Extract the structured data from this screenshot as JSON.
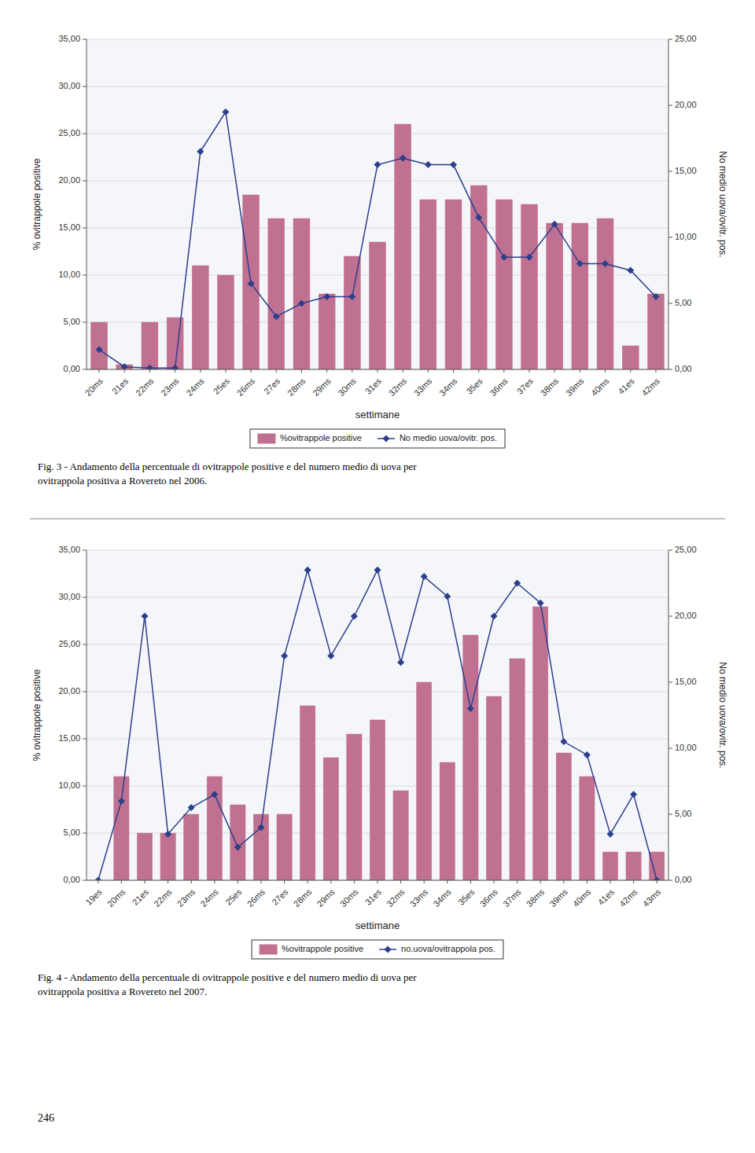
{
  "chart_data": [
    {
      "type": "bar",
      "x_label": "settimane",
      "y_label": "% ovitrappole positive",
      "y2_label": "No medio uova/ovitr. pos.",
      "categories": [
        "20ms",
        "21es",
        "22ms",
        "23ms",
        "24ms",
        "25es",
        "26ms",
        "27es",
        "28ms",
        "29ms",
        "30ms",
        "31es",
        "32ms",
        "33ms",
        "34ms",
        "35es",
        "36ms",
        "37es",
        "38ms",
        "39ms",
        "40ms",
        "41es",
        "42ms"
      ],
      "series": [
        {
          "name": "%ovitrappole positive",
          "type": "bar",
          "color": "#c07090",
          "values": [
            5.0,
            0.5,
            5.0,
            5.5,
            11.0,
            10.0,
            18.5,
            16.0,
            16.0,
            8.0,
            12.0,
            13.5,
            26.0,
            18.0,
            18.0,
            19.5,
            18.0,
            17.5,
            15.5,
            15.5,
            16.0,
            2.5,
            8.0
          ]
        },
        {
          "name": "No medio uova/ovitr. pos.",
          "type": "line",
          "axis": "y2",
          "color": "#2b3f8c",
          "marker": "diamond",
          "line_style": "solid",
          "values": [
            1.5,
            0.2,
            0.1,
            0.1,
            16.5,
            19.5,
            6.5,
            4.0,
            5.0,
            5.5,
            5.5,
            15.5,
            16.0,
            15.5,
            15.5,
            11.5,
            8.5,
            8.5,
            11.0,
            8.0,
            8.0,
            7.5,
            5.5
          ]
        }
      ],
      "ylim": [
        0,
        35
      ],
      "yticks": [
        {
          "value": 0,
          "label": "0,00"
        },
        {
          "value": 5,
          "label": "5,00"
        },
        {
          "value": 10,
          "label": "10,00"
        },
        {
          "value": 15,
          "label": "15,00"
        },
        {
          "value": 20,
          "label": "20,00"
        },
        {
          "value": 25,
          "label": "25,00"
        },
        {
          "value": 30,
          "label": "30,00"
        },
        {
          "value": 35,
          "label": "35,00"
        }
      ],
      "y2lim": [
        0,
        25
      ],
      "y2ticks": [
        {
          "value": 0,
          "label": "0,00"
        },
        {
          "value": 5,
          "label": "5,00"
        },
        {
          "value": 10,
          "label": "10,00"
        },
        {
          "value": 15,
          "label": "15,00"
        },
        {
          "value": 20,
          "label": "20,00"
        },
        {
          "value": 25,
          "label": "25,00"
        }
      ],
      "grid": true,
      "legend": "bottom",
      "annotations": [
        "Fig. 3 - Andamento della percentuale di ovitrappole positive e del numero medio di uova per",
        "ovitrappola positiva a Rovereto nel 2006."
      ]
    },
    {
      "type": "bar",
      "x_label": "settimane",
      "y_label": "% ovitrappole positive",
      "y2_label": "No medio uova/ovitr. pos.",
      "categories": [
        "19es",
        "20ms",
        "21es",
        "22ms",
        "23ms",
        "24ms",
        "25es",
        "26ms",
        "27es",
        "28ms",
        "29ms",
        "30ms",
        "31es",
        "32ms",
        "33ms",
        "34ms",
        "35es",
        "36ms",
        "37ms",
        "38ms",
        "39ms",
        "40ms",
        "41es",
        "42ms",
        "43ms"
      ],
      "series": [
        {
          "name": "%ovitrappole positive",
          "type": "bar",
          "color": "#c07090",
          "values": [
            0.0,
            11.0,
            5.0,
            5.0,
            7.0,
            11.0,
            8.0,
            7.0,
            7.0,
            18.5,
            13.0,
            15.5,
            17.0,
            9.5,
            21.0,
            12.5,
            26.0,
            19.5,
            23.5,
            29.0,
            13.5,
            11.0,
            3.0,
            3.0,
            3.0
          ]
        },
        {
          "name": "no.uova/ovitrappola pos.",
          "type": "line",
          "axis": "y2",
          "color": "#2b3f8c",
          "marker": "diamond",
          "line_style": "solid",
          "values": [
            0.0,
            6.0,
            20.0,
            3.5,
            5.5,
            6.5,
            2.5,
            4.0,
            17.0,
            23.5,
            17.0,
            20.0,
            23.5,
            16.5,
            23.0,
            21.5,
            13.0,
            20.0,
            22.5,
            21.0,
            10.5,
            9.5,
            3.5,
            6.5,
            0.0
          ]
        }
      ],
      "ylim": [
        0,
        35
      ],
      "yticks": [
        {
          "value": 0,
          "label": "0,00"
        },
        {
          "value": 5,
          "label": "5,00"
        },
        {
          "value": 10,
          "label": "10,00"
        },
        {
          "value": 15,
          "label": "15,00"
        },
        {
          "value": 20,
          "label": "20,00"
        },
        {
          "value": 25,
          "label": "25,00"
        },
        {
          "value": 30,
          "label": "30,00"
        },
        {
          "value": 35,
          "label": "35,00"
        }
      ],
      "y2lim": [
        0,
        25
      ],
      "y2ticks": [
        {
          "value": 0,
          "label": "0,00"
        },
        {
          "value": 5,
          "label": "5,00"
        },
        {
          "value": 10,
          "label": "10,00"
        },
        {
          "value": 15,
          "label": "15,00"
        },
        {
          "value": 20,
          "label": "20,00"
        },
        {
          "value": 25,
          "label": "25,00"
        }
      ],
      "grid": true,
      "legend": "bottom",
      "annotations": [
        "Fig. 4 - Andamento della percentuale di ovitrappole positive e del numero medio di uova per",
        "ovitrappola positiva a Rovereto nel 2007.",
        "246"
      ]
    }
  ]
}
